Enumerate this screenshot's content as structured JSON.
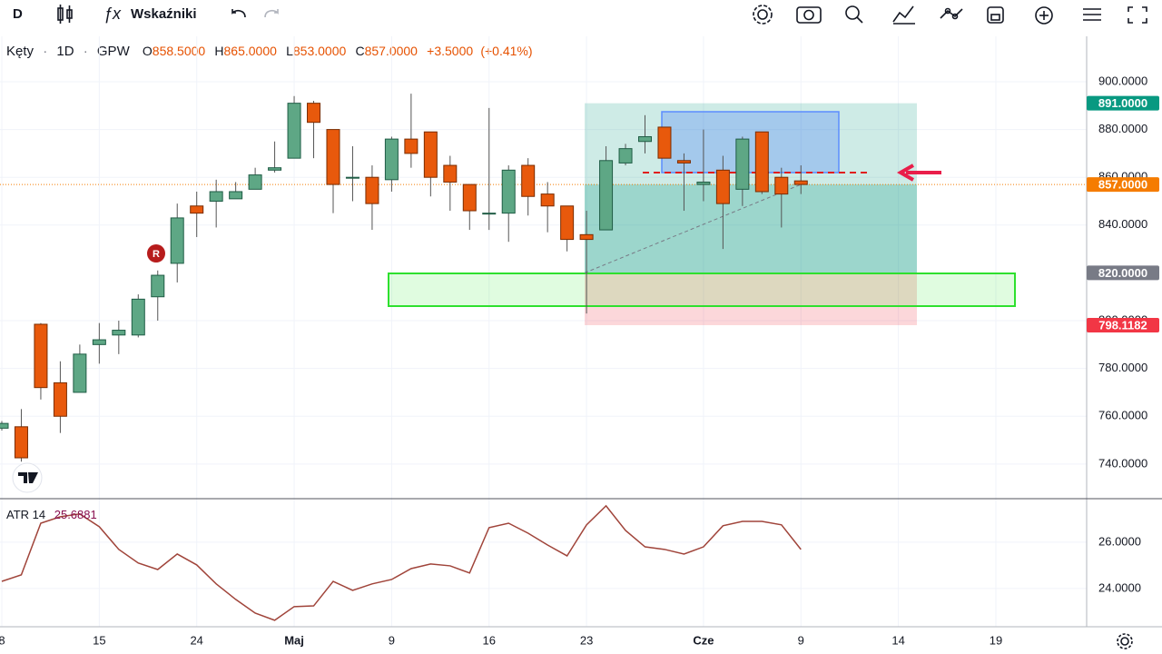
{
  "toolbar": {
    "interval": "D",
    "indicators": "Wskaźniki"
  },
  "legend": {
    "symbol": "Kęty",
    "separator": "·",
    "interval": "1D",
    "exchange": "GPW",
    "ohlc": [
      {
        "label": "O",
        "value": "858.5000"
      },
      {
        "label": "H",
        "value": "865.0000"
      },
      {
        "label": "L",
        "value": "853.0000"
      },
      {
        "label": "C",
        "value": "857.0000"
      }
    ],
    "change": "+3.5000",
    "change_pct": "(+0.41%)"
  },
  "marker": "R",
  "candles": {
    "open": [
      755,
      755.6,
      798.5,
      774,
      770,
      790,
      794,
      794,
      810,
      824,
      848,
      850,
      851,
      855,
      863,
      868,
      891,
      880,
      860,
      860,
      859,
      876,
      879,
      865,
      857,
      845,
      845,
      865,
      853,
      848,
      836,
      838,
      866,
      875,
      881,
      867,
      857,
      863,
      855,
      879,
      860,
      858.5
    ],
    "high": [
      758,
      763,
      799,
      783,
      790,
      799,
      800,
      811,
      821,
      849,
      854,
      859,
      858,
      864,
      875,
      894,
      892,
      880,
      873,
      865,
      877,
      895,
      879,
      869,
      857,
      889,
      865,
      868,
      858,
      848,
      846,
      873,
      874,
      886,
      881,
      870,
      880,
      869,
      877,
      879,
      864,
      865
    ],
    "low": [
      754,
      741,
      767,
      753,
      770,
      782,
      786,
      793,
      800,
      816,
      835,
      839,
      851,
      855,
      862,
      868,
      868,
      845,
      850,
      838,
      854,
      864,
      852,
      846,
      838,
      838,
      833,
      844,
      837,
      829,
      803,
      838,
      865,
      870,
      868,
      846,
      850,
      830,
      848,
      853,
      839,
      853
    ],
    "close": [
      757,
      742.6,
      772,
      760,
      786,
      792,
      796,
      809,
      819,
      843,
      845,
      854,
      854,
      861,
      864,
      891,
      883,
      857,
      860,
      849,
      876,
      870,
      860,
      858,
      846,
      845,
      863,
      852,
      848,
      834,
      834,
      867,
      872,
      877,
      868,
      866,
      858,
      849,
      876,
      854,
      853,
      857
    ]
  },
  "price_axis": {
    "ylim": [
      725.5,
      919
    ],
    "ticks": [
      {
        "value": 900,
        "label": "900.0000"
      },
      {
        "value": 880,
        "label": "880.0000"
      },
      {
        "value": 860,
        "label": "860.0000"
      },
      {
        "value": 840,
        "label": "840.0000"
      },
      {
        "value": 800,
        "label": "800.0000"
      },
      {
        "value": 780,
        "label": "780.0000"
      },
      {
        "value": 760,
        "label": "760.0000"
      },
      {
        "value": 740,
        "label": "740.0000"
      }
    ],
    "badges": [
      {
        "value": 891,
        "label": "891.0000",
        "color": "#089981"
      },
      {
        "value": 857,
        "label": "857.0000",
        "color": "#f57c00"
      },
      {
        "value": 820,
        "label": "820.0000",
        "color": "#787b86"
      },
      {
        "value": 798.1182,
        "label": "798.1182",
        "color": "#f23645"
      }
    ]
  },
  "atr": {
    "name": "ATR 14",
    "value_label": "25.6881",
    "ylim": [
      22.35,
      27.84
    ],
    "ticks": [
      {
        "value": 26,
        "label": "26.0000"
      },
      {
        "value": 24,
        "label": "24.0000"
      }
    ],
    "values": [
      24.31,
      24.59,
      26.82,
      27.1,
      27.22,
      26.67,
      25.69,
      25.1,
      24.82,
      25.49,
      25.02,
      24.2,
      23.53,
      22.94,
      22.63,
      23.22,
      23.25,
      24.31,
      23.92,
      24.2,
      24.39,
      24.86,
      25.06,
      24.98,
      24.67,
      26.63,
      26.82,
      26.39,
      25.88,
      25.41,
      26.75,
      27.57,
      26.51,
      25.8,
      25.69,
      25.49,
      25.8,
      26.71,
      26.9,
      26.9,
      26.75,
      25.6881
    ]
  },
  "date_labels": [
    "8",
    "15",
    "24",
    "Maj",
    "9",
    "16",
    "23",
    "Cze",
    "9",
    "14",
    "19"
  ]
}
